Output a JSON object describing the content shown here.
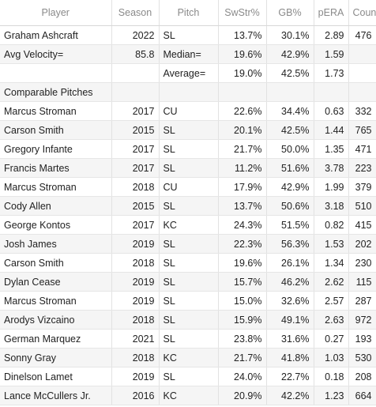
{
  "headers": [
    "Player",
    "Season",
    "Pitch",
    "SwStr%",
    "GB%",
    "pERA",
    "Count"
  ],
  "rows": [
    [
      "Graham Ashcraft",
      "2022",
      "SL",
      "13.7%",
      "30.1%",
      "2.89",
      "476"
    ],
    [
      "Avg Velocity=",
      "85.8",
      "Median=",
      "19.6%",
      "42.9%",
      "1.59",
      ""
    ],
    [
      "",
      "",
      "Average=",
      "19.0%",
      "42.5%",
      "1.73",
      ""
    ],
    [
      "Comparable Pitches",
      "",
      "",
      "",
      "",
      "",
      ""
    ],
    [
      "Marcus Stroman",
      "2017",
      "CU",
      "22.6%",
      "34.4%",
      "0.63",
      "332"
    ],
    [
      "Carson Smith",
      "2015",
      "SL",
      "20.1%",
      "42.5%",
      "1.44",
      "765"
    ],
    [
      "Gregory Infante",
      "2017",
      "SL",
      "21.7%",
      "50.0%",
      "1.35",
      "471"
    ],
    [
      "Francis Martes",
      "2017",
      "SL",
      "11.2%",
      "51.6%",
      "3.78",
      "223"
    ],
    [
      "Marcus Stroman",
      "2018",
      "CU",
      "17.9%",
      "42.9%",
      "1.99",
      "379"
    ],
    [
      "Cody Allen",
      "2015",
      "SL",
      "13.7%",
      "50.6%",
      "3.18",
      "510"
    ],
    [
      "George Kontos",
      "2017",
      "KC",
      "24.3%",
      "51.5%",
      "0.82",
      "415"
    ],
    [
      "Josh James",
      "2019",
      "SL",
      "22.3%",
      "56.3%",
      "1.53",
      "202"
    ],
    [
      "Carson Smith",
      "2018",
      "SL",
      "19.6%",
      "26.1%",
      "1.34",
      "230"
    ],
    [
      "Dylan Cease",
      "2019",
      "SL",
      "15.7%",
      "46.2%",
      "2.62",
      "115"
    ],
    [
      "Marcus Stroman",
      "2019",
      "SL",
      "15.0%",
      "32.6%",
      "2.57",
      "287"
    ],
    [
      "Arodys Vizcaino",
      "2018",
      "SL",
      "15.9%",
      "49.1%",
      "2.63",
      "972"
    ],
    [
      "German Marquez",
      "2021",
      "SL",
      "23.8%",
      "31.6%",
      "0.27",
      "193"
    ],
    [
      "Sonny Gray",
      "2018",
      "KC",
      "21.7%",
      "41.8%",
      "1.03",
      "530"
    ],
    [
      "Dinelson Lamet",
      "2019",
      "SL",
      "24.0%",
      "22.7%",
      "0.18",
      "208"
    ],
    [
      "Lance McCullers Jr.",
      "2016",
      "KC",
      "20.9%",
      "42.2%",
      "1.23",
      "664"
    ]
  ]
}
